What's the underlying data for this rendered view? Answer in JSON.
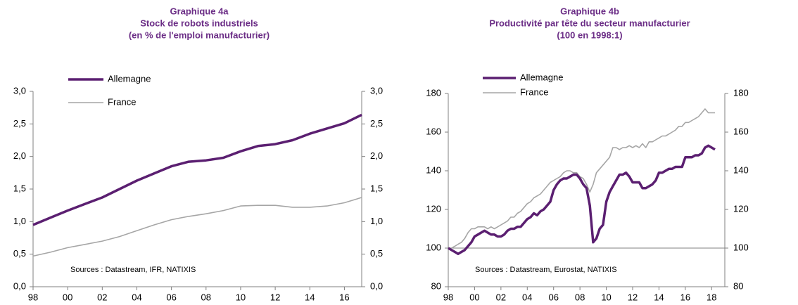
{
  "chart_data": [
    {
      "type": "line",
      "title": "Graphique 4a",
      "subtitle": [
        "Stock de robots industriels",
        "(en % de l'emploi manufacturier)"
      ],
      "x": [
        1998,
        1999,
        2000,
        2001,
        2002,
        2003,
        2004,
        2005,
        2006,
        2007,
        2008,
        2009,
        2010,
        2011,
        2012,
        2013,
        2014,
        2015,
        2016,
        2017
      ],
      "series": [
        {
          "name": "Allemagne",
          "color": "#5b1f71",
          "width": 3.5,
          "values": [
            0.95,
            1.06,
            1.17,
            1.27,
            1.37,
            1.5,
            1.63,
            1.74,
            1.85,
            1.92,
            1.94,
            1.98,
            2.08,
            2.16,
            2.19,
            2.25,
            2.35,
            2.43,
            2.51,
            2.64
          ]
        },
        {
          "name": "France",
          "color": "#a6a6a6",
          "width": 1.6,
          "values": [
            0.47,
            0.53,
            0.6,
            0.65,
            0.7,
            0.77,
            0.86,
            0.95,
            1.03,
            1.08,
            1.12,
            1.17,
            1.24,
            1.25,
            1.25,
            1.22,
            1.22,
            1.24,
            1.29,
            1.37
          ]
        }
      ],
      "xlim": [
        1998,
        2017
      ],
      "xticks": [
        {
          "value": 1998,
          "label": "98"
        },
        {
          "value": 2000,
          "label": "00"
        },
        {
          "value": 2002,
          "label": "02"
        },
        {
          "value": 2004,
          "label": "04"
        },
        {
          "value": 2006,
          "label": "06"
        },
        {
          "value": 2008,
          "label": "08"
        },
        {
          "value": 2010,
          "label": "10"
        },
        {
          "value": 2012,
          "label": "12"
        },
        {
          "value": 2014,
          "label": "14"
        },
        {
          "value": 2016,
          "label": "16"
        }
      ],
      "ylim": [
        0,
        3
      ],
      "yticks": [
        {
          "value": 0,
          "label": "0,0"
        },
        {
          "value": 0.5,
          "label": "0,5"
        },
        {
          "value": 1,
          "label": "1,0"
        },
        {
          "value": 1.5,
          "label": "1,5"
        },
        {
          "value": 2,
          "label": "2,0"
        },
        {
          "value": 2.5,
          "label": "2,5"
        },
        {
          "value": 3,
          "label": "3,0"
        }
      ],
      "y2lim": [
        0,
        3
      ],
      "y2ticks": [
        {
          "value": 0,
          "label": "0,0"
        },
        {
          "value": 0.5,
          "label": "0,5"
        },
        {
          "value": 1,
          "label": "1,0"
        },
        {
          "value": 1.5,
          "label": "1,5"
        },
        {
          "value": 2,
          "label": "2,0"
        },
        {
          "value": 2.5,
          "label": "2,5"
        },
        {
          "value": 3,
          "label": "3,0"
        }
      ],
      "annotation": "Sources : Datastream, IFR, NATIXIS"
    },
    {
      "type": "line",
      "title": "Graphique 4b",
      "subtitle": [
        "Productivité par tête du secteur manufacturier",
        "(100 en 1998:1)"
      ],
      "x": [
        1998,
        1998.25,
        1998.5,
        1998.75,
        1999,
        1999.25,
        1999.5,
        1999.75,
        2000,
        2000.25,
        2000.5,
        2000.75,
        2001,
        2001.25,
        2001.5,
        2001.75,
        2002,
        2002.25,
        2002.5,
        2002.75,
        2003,
        2003.25,
        2003.5,
        2003.75,
        2004,
        2004.25,
        2004.5,
        2004.75,
        2005,
        2005.25,
        2005.5,
        2005.75,
        2006,
        2006.25,
        2006.5,
        2006.75,
        2007,
        2007.25,
        2007.5,
        2007.75,
        2008,
        2008.25,
        2008.5,
        2008.75,
        2009,
        2009.25,
        2009.5,
        2009.75,
        2010,
        2010.25,
        2010.5,
        2010.75,
        2011,
        2011.25,
        2011.5,
        2011.75,
        2012,
        2012.25,
        2012.5,
        2012.75,
        2013,
        2013.25,
        2013.5,
        2013.75,
        2014,
        2014.25,
        2014.5,
        2014.75,
        2015,
        2015.25,
        2015.5,
        2015.75,
        2016,
        2016.25,
        2016.5,
        2016.75,
        2017,
        2017.25,
        2017.5,
        2017.75,
        2018,
        2018.25
      ],
      "series": [
        {
          "name": "Allemagne",
          "color": "#5b1f71",
          "width": 3.5,
          "values": [
            100,
            99,
            98,
            97,
            98,
            99,
            101,
            103,
            106,
            107,
            108,
            109,
            108,
            107,
            107,
            106,
            106,
            107,
            109,
            110,
            110,
            111,
            111,
            113,
            115,
            116,
            118,
            117,
            119,
            120,
            122,
            124,
            130,
            133,
            135,
            136,
            136,
            137,
            138,
            138,
            136,
            133,
            131,
            122,
            103,
            105,
            110,
            112,
            124,
            129,
            132,
            135,
            138,
            138,
            139,
            137,
            134,
            134,
            134,
            131,
            131,
            132,
            133,
            135,
            139,
            139,
            140,
            141,
            141,
            142,
            142,
            142,
            147,
            147,
            147,
            148,
            148,
            149,
            152,
            153,
            152,
            151
          ]
        },
        {
          "name": "France",
          "color": "#a6a6a6",
          "width": 1.6,
          "values": [
            100,
            100,
            101,
            102,
            103,
            105,
            108,
            110,
            110,
            111,
            111,
            111,
            110,
            111,
            110,
            111,
            112,
            113,
            114,
            116,
            116,
            118,
            119,
            121,
            123,
            124,
            126,
            127,
            128,
            130,
            132,
            134,
            135,
            136,
            137,
            139,
            140,
            140,
            139,
            139,
            137,
            136,
            133,
            129,
            133,
            139,
            141,
            143,
            145,
            147,
            152,
            152,
            151,
            152,
            152,
            153,
            152,
            153,
            152,
            154,
            152,
            155,
            155,
            156,
            157,
            158,
            158,
            159,
            160,
            161,
            163,
            163,
            165,
            165,
            166,
            167,
            168,
            170,
            172,
            170,
            170,
            170
          ]
        }
      ],
      "xlim": [
        1998,
        2019
      ],
      "xticks": [
        {
          "value": 1998,
          "label": "98"
        },
        {
          "value": 2000,
          "label": "00"
        },
        {
          "value": 2002,
          "label": "02"
        },
        {
          "value": 2004,
          "label": "04"
        },
        {
          "value": 2006,
          "label": "06"
        },
        {
          "value": 2008,
          "label": "08"
        },
        {
          "value": 2010,
          "label": "10"
        },
        {
          "value": 2012,
          "label": "12"
        },
        {
          "value": 2014,
          "label": "14"
        },
        {
          "value": 2016,
          "label": "16"
        },
        {
          "value": 2018,
          "label": "18"
        }
      ],
      "ylim": [
        80,
        180
      ],
      "yticks": [
        80,
        100,
        120,
        140,
        160,
        180
      ],
      "y2lim": [
        80,
        180
      ],
      "y2ticks": [
        80,
        100,
        120,
        140,
        160,
        180
      ],
      "reference_line": 100,
      "annotation": "Sources : Datastream, Eurostat, NATIXIS"
    }
  ]
}
